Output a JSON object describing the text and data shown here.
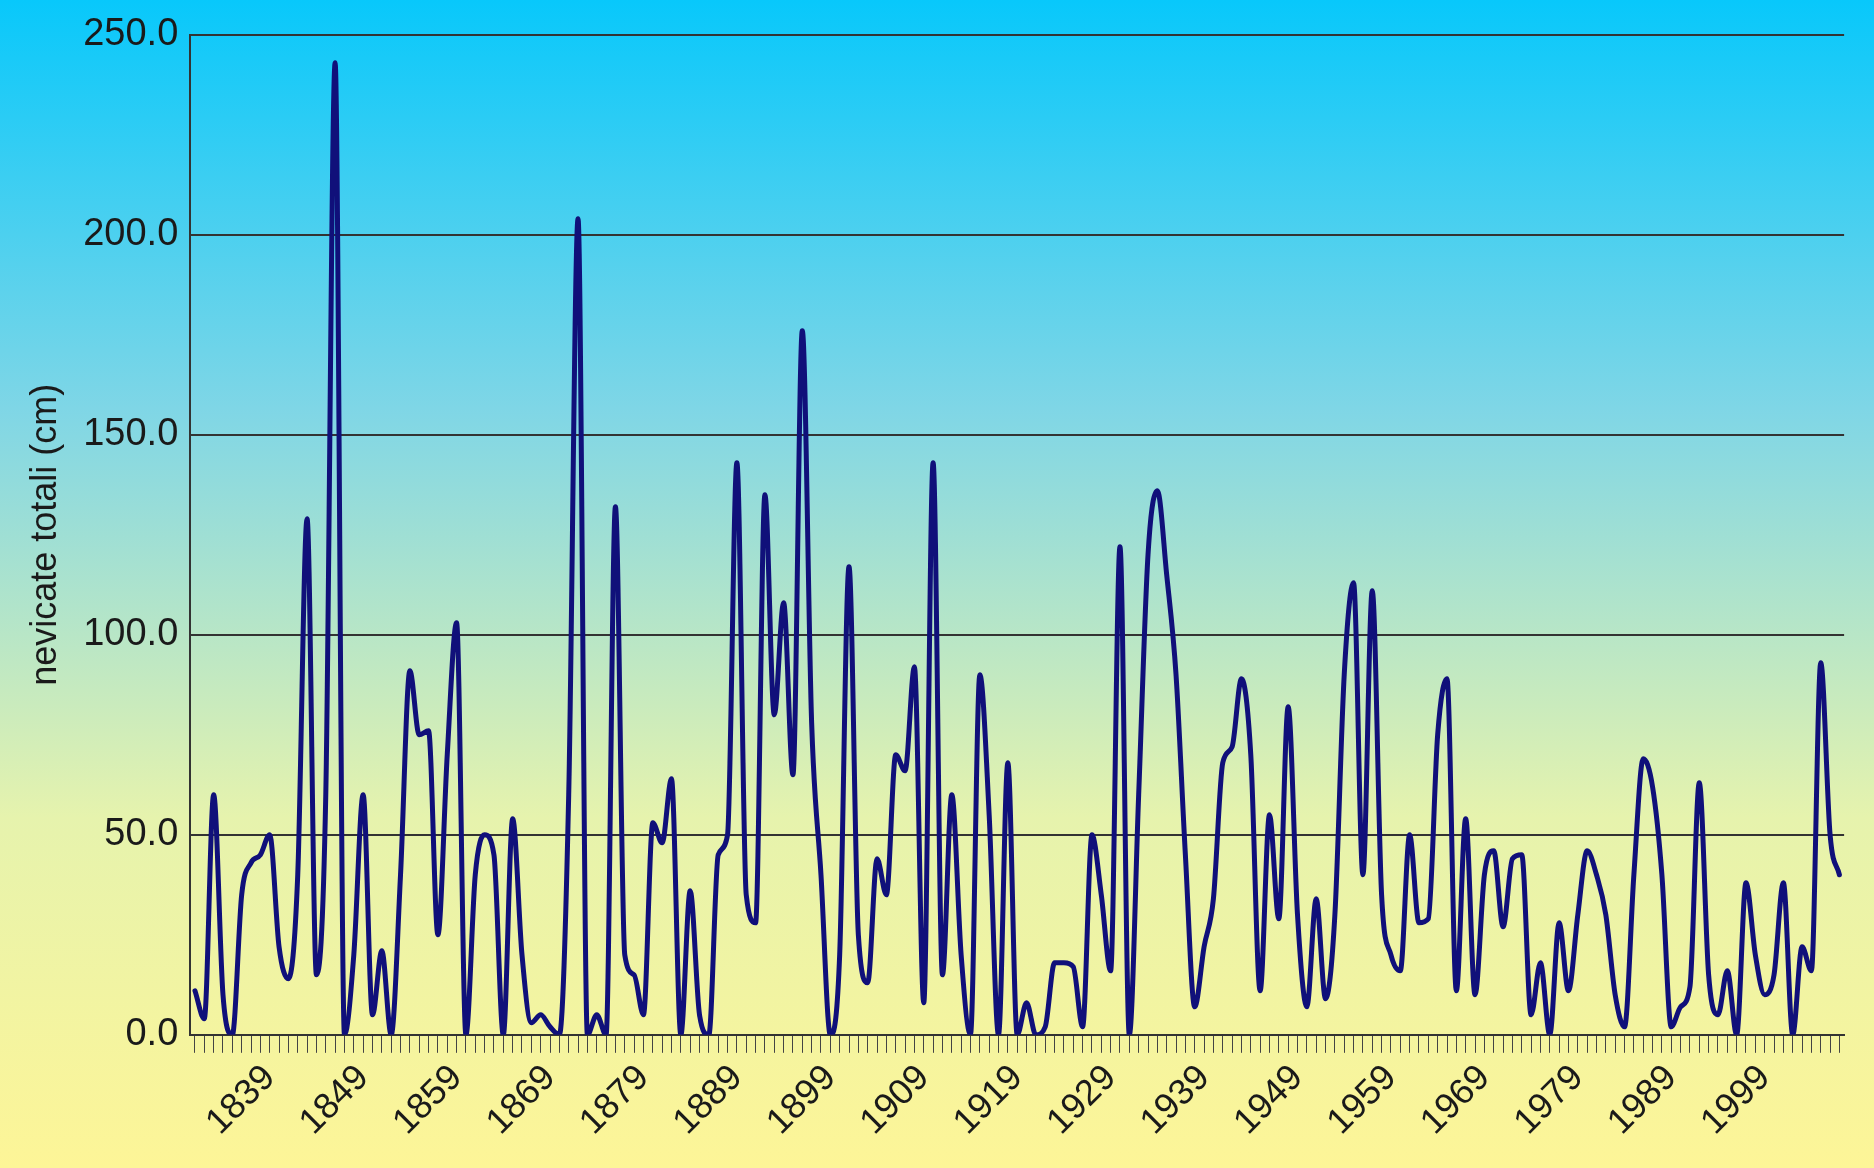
{
  "chart_data": {
    "type": "line",
    "ylabel": "nevicate totali (cm)",
    "categories": [
      null,
      null,
      null,
      null,
      null,
      null,
      null,
      null,
      "1839",
      null,
      null,
      null,
      null,
      null,
      null,
      null,
      null,
      null,
      "1849",
      null,
      null,
      null,
      null,
      null,
      null,
      null,
      null,
      null,
      "1859",
      null,
      null,
      null,
      null,
      null,
      null,
      null,
      null,
      null,
      "1869",
      null,
      null,
      null,
      null,
      null,
      null,
      null,
      null,
      null,
      "1879",
      null,
      null,
      null,
      null,
      null,
      null,
      null,
      null,
      null,
      "1889",
      null,
      null,
      null,
      null,
      null,
      null,
      null,
      null,
      null,
      "1899",
      null,
      null,
      null,
      null,
      null,
      null,
      null,
      null,
      null,
      "1909",
      null,
      null,
      null,
      null,
      null,
      null,
      null,
      null,
      null,
      "1919",
      null,
      null,
      null,
      null,
      null,
      null,
      null,
      null,
      null,
      "1929",
      null,
      null,
      null,
      null,
      null,
      null,
      null,
      null,
      null,
      "1939",
      null,
      null,
      null,
      null,
      null,
      null,
      null,
      null,
      null,
      "1949",
      null,
      null,
      null,
      null,
      null,
      null,
      null,
      null,
      null,
      "1959",
      null,
      null,
      null,
      null,
      null,
      null,
      null,
      null,
      null,
      "1969",
      null,
      null,
      null,
      null,
      null,
      null,
      null,
      null,
      null,
      "1979",
      null,
      null,
      null,
      null,
      null,
      null,
      null,
      null,
      null,
      "1989",
      null,
      null,
      null,
      null,
      null,
      null,
      null,
      null,
      null,
      "1999",
      null,
      null,
      null,
      null,
      null,
      null,
      null,
      null
    ],
    "series": [
      {
        "color": "#10107a",
        "values": [
          11,
          4,
          60,
          10,
          0,
          35,
          43,
          45,
          50,
          22,
          14,
          40,
          129,
          15,
          60,
          243,
          0,
          20,
          60,
          5,
          21,
          0,
          40,
          91,
          75,
          76,
          25,
          70,
          103,
          0,
          40,
          50,
          45,
          0,
          54,
          20,
          3,
          5,
          2,
          0,
          60,
          204,
          0,
          5,
          0,
          132,
          20,
          15,
          5,
          53,
          48,
          64,
          0,
          36,
          5,
          0,
          45,
          50,
          143,
          35,
          28,
          135,
          80,
          108,
          65,
          176,
          78,
          40,
          0,
          20,
          117,
          25,
          13,
          44,
          35,
          70,
          66,
          92,
          8,
          143,
          15,
          60,
          20,
          0,
          90,
          55,
          0,
          68,
          0,
          8,
          0,
          2,
          18,
          18,
          17,
          2,
          50,
          35,
          16,
          122,
          0,
          60,
          120,
          136,
          115,
          90,
          45,
          7,
          22,
          34,
          68,
          72,
          89,
          70,
          11,
          55,
          29,
          82,
          30,
          7,
          34,
          9,
          30,
          90,
          113,
          40,
          111,
          35,
          20,
          16,
          50,
          28,
          29,
          75,
          89,
          11,
          54,
          10,
          40,
          46,
          27,
          44,
          45,
          5,
          18,
          0,
          28,
          11,
          30,
          46,
          40,
          30,
          10,
          2,
          40,
          69,
          62,
          40,
          2,
          7,
          12,
          63,
          15,
          5,
          16,
          0,
          38,
          20,
          10,
          15,
          38,
          0,
          22,
          16,
          93,
          50,
          40
        ]
      }
    ],
    "ylim": [
      0,
      250
    ],
    "yticks": [
      {
        "value": 0,
        "label": "0.0"
      },
      {
        "value": 50,
        "label": "50.0"
      },
      {
        "value": 100,
        "label": "100.0"
      },
      {
        "value": 150,
        "label": "150.0"
      },
      {
        "value": 200,
        "label": "200.0"
      },
      {
        "value": 250,
        "label": "250.0"
      }
    ],
    "grid": "y",
    "legend": false,
    "marker": "none",
    "line_style": "solid"
  }
}
